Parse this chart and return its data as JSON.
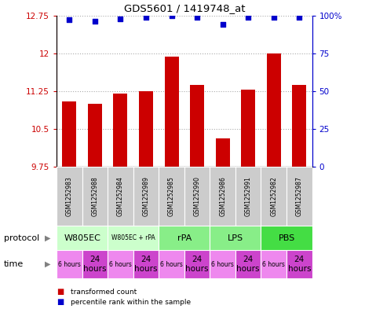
{
  "title": "GDS5601 / 1419748_at",
  "samples": [
    "GSM1252983",
    "GSM1252988",
    "GSM1252984",
    "GSM1252989",
    "GSM1252985",
    "GSM1252990",
    "GSM1252986",
    "GSM1252991",
    "GSM1252982",
    "GSM1252987"
  ],
  "bar_values": [
    11.05,
    11.0,
    11.2,
    11.25,
    11.93,
    11.38,
    10.32,
    11.28,
    12.0,
    11.38
  ],
  "dot_values": [
    97,
    96,
    98,
    99,
    100,
    99,
    94,
    99,
    99,
    99
  ],
  "ylim": [
    9.75,
    12.75
  ],
  "y2lim": [
    0,
    100
  ],
  "yticks": [
    9.75,
    10.5,
    11.25,
    12.0,
    12.75
  ],
  "ytick_labels": [
    "9.75",
    "10.5",
    "11.25",
    "12",
    "12.75"
  ],
  "y2ticks": [
    0,
    25,
    50,
    75,
    100
  ],
  "y2tick_labels": [
    "0",
    "25",
    "50",
    "75",
    "100%"
  ],
  "bar_color": "#cc0000",
  "dot_color": "#0000cc",
  "bar_bottom": 9.75,
  "protocols": [
    {
      "label": "W805EC",
      "start": 0,
      "end": 2,
      "color": "#ccffcc"
    },
    {
      "label": "W805EC + rPA",
      "start": 2,
      "end": 4,
      "color": "#ccffcc"
    },
    {
      "label": "rPA",
      "start": 4,
      "end": 6,
      "color": "#88ee88"
    },
    {
      "label": "LPS",
      "start": 6,
      "end": 8,
      "color": "#88ee88"
    },
    {
      "label": "PBS",
      "start": 8,
      "end": 10,
      "color": "#44dd44"
    }
  ],
  "times": [
    "6 hours",
    "24\nhours",
    "6 hours",
    "24\nhours",
    "6 hours",
    "24\nhours",
    "6 hours",
    "24\nhours",
    "6 hours",
    "24\nhours"
  ],
  "time_bg_small": "#ee88ee",
  "time_bg_large": "#cc44cc",
  "sample_bg": "#cccccc",
  "grid_color": "#aaaaaa",
  "protocol_label_color": "gray",
  "time_label_color": "gray"
}
